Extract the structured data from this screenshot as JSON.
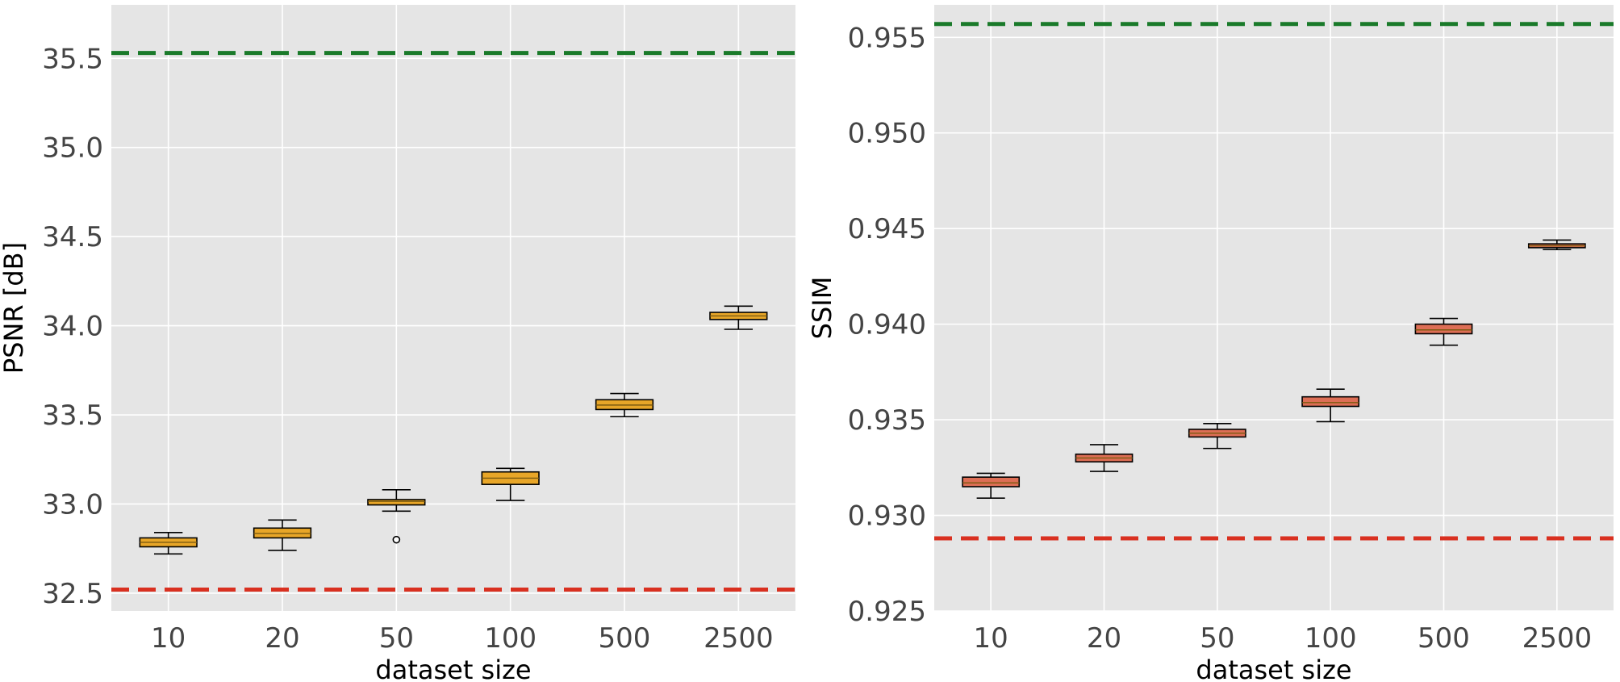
{
  "chart_data": [
    {
      "type": "box",
      "panel": "left",
      "xlabel": "dataset size",
      "ylabel": "PSNR [dB]",
      "categories": [
        "10",
        "20",
        "50",
        "100",
        "500",
        "2500"
      ],
      "ylim": [
        32.4,
        35.8
      ],
      "yticks": [
        32.5,
        33.0,
        33.5,
        34.0,
        34.5,
        35.0,
        35.5
      ],
      "ytick_labels": [
        "32.5",
        "33.0",
        "33.5",
        "34.0",
        "34.5",
        "35.0",
        "35.5"
      ],
      "grid": true,
      "box_color": "#e8a628",
      "boxes": [
        {
          "whislo": 32.72,
          "q1": 32.76,
          "med": 32.785,
          "q3": 32.81,
          "whishi": 32.84,
          "fliers": []
        },
        {
          "whislo": 32.74,
          "q1": 32.81,
          "med": 32.835,
          "q3": 32.865,
          "whishi": 32.91,
          "fliers": []
        },
        {
          "whislo": 32.96,
          "q1": 32.995,
          "med": 33.015,
          "q3": 33.025,
          "whishi": 33.08,
          "fliers": [
            32.8
          ]
        },
        {
          "whislo": 33.02,
          "q1": 33.11,
          "med": 33.145,
          "q3": 33.18,
          "whishi": 33.2,
          "fliers": []
        },
        {
          "whislo": 33.49,
          "q1": 33.53,
          "med": 33.555,
          "q3": 33.585,
          "whishi": 33.62,
          "fliers": []
        },
        {
          "whislo": 33.98,
          "q1": 34.035,
          "med": 34.055,
          "q3": 34.075,
          "whishi": 34.11,
          "fliers": []
        }
      ],
      "reference_lines": [
        {
          "value": 35.53,
          "color": "#1a7a2a",
          "style": "dashed"
        },
        {
          "value": 32.52,
          "color": "#d93020",
          "style": "dashed"
        }
      ]
    },
    {
      "type": "box",
      "panel": "right",
      "xlabel": "dataset size",
      "ylabel": "SSIM",
      "categories": [
        "10",
        "20",
        "50",
        "100",
        "500",
        "2500"
      ],
      "ylim": [
        0.925,
        0.9567
      ],
      "yticks": [
        0.925,
        0.93,
        0.935,
        0.94,
        0.945,
        0.95,
        0.955
      ],
      "ytick_labels": [
        "0.925",
        "0.930",
        "0.935",
        "0.940",
        "0.945",
        "0.950",
        "0.955"
      ],
      "grid": true,
      "box_color": "#dd6e55",
      "boxes": [
        {
          "whislo": 0.9309,
          "q1": 0.9315,
          "med": 0.9317,
          "q3": 0.932,
          "whishi": 0.9322,
          "fliers": []
        },
        {
          "whislo": 0.9323,
          "q1": 0.9328,
          "med": 0.933,
          "q3": 0.9332,
          "whishi": 0.9337,
          "fliers": []
        },
        {
          "whislo": 0.9335,
          "q1": 0.9341,
          "med": 0.9343,
          "q3": 0.9345,
          "whishi": 0.9348,
          "fliers": []
        },
        {
          "whislo": 0.9349,
          "q1": 0.9357,
          "med": 0.9359,
          "q3": 0.9362,
          "whishi": 0.9366,
          "fliers": []
        },
        {
          "whislo": 0.9389,
          "q1": 0.9395,
          "med": 0.9397,
          "q3": 0.94,
          "whishi": 0.9403,
          "fliers": []
        },
        {
          "whislo": 0.9439,
          "q1": 0.944,
          "med": 0.9441,
          "q3": 0.9442,
          "whishi": 0.9444,
          "fliers": []
        }
      ],
      "reference_lines": [
        {
          "value": 0.9557,
          "color": "#1a7a2a",
          "style": "dashed"
        },
        {
          "value": 0.9288,
          "color": "#d93020",
          "style": "dashed"
        }
      ]
    }
  ]
}
